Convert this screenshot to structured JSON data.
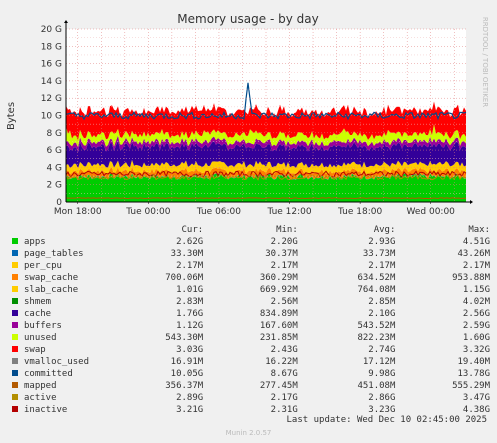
{
  "chart_data": {
    "type": "area",
    "title": "Memory usage - by day",
    "ylabel": "Bytes",
    "side_label": "RRDTOOL / TOBI OETIKER",
    "ylim": [
      0,
      20
    ],
    "y_unit": "G",
    "y_ticks": [
      "0",
      "2 G",
      "4 G",
      "6 G",
      "8 G",
      "10 G",
      "12 G",
      "14 G",
      "16 G",
      "18 G",
      "20 G"
    ],
    "x_range": [
      "Mon 17:00",
      "Wed 03:00"
    ],
    "x_ticks": [
      "Mon 18:00",
      "Tue 00:00",
      "Tue 06:00",
      "Tue 12:00",
      "Tue 18:00",
      "Wed 00:00"
    ],
    "stack_order": [
      "apps",
      "page_tables",
      "per_cpu",
      "swap_cache",
      "slab_cache",
      "cache",
      "buffers",
      "unused",
      "swap"
    ],
    "line_series": [
      "committed",
      "inactive"
    ],
    "legend_headers": [
      "Cur:",
      "Min:",
      "Avg:",
      "Max:"
    ],
    "series": [
      {
        "name": "apps",
        "color": "#00cc00",
        "cur": "2.62G",
        "min": "2.20G",
        "avg": "2.93G",
        "max": "4.51G",
        "level_g": 2.93
      },
      {
        "name": "page_tables",
        "color": "#0066b3",
        "cur": "33.30M",
        "min": "30.37M",
        "avg": "33.73M",
        "max": "43.26M",
        "level_g": 0.033
      },
      {
        "name": "per_cpu",
        "color": "#ffcc00",
        "cur": "2.17M",
        "min": "2.17M",
        "avg": "2.17M",
        "max": "2.17M",
        "level_g": 0.002
      },
      {
        "name": "swap_cache",
        "color": "#ff8000",
        "cur": "700.06M",
        "min": "360.29M",
        "avg": "634.52M",
        "max": "953.88M",
        "level_g": 0.63
      },
      {
        "name": "slab_cache",
        "color": "#ffcc00",
        "cur": "1.01G",
        "min": "669.92M",
        "avg": "764.08M",
        "max": "1.15G",
        "level_g": 0.76
      },
      {
        "name": "shmem",
        "color": "#008f00",
        "cur": "2.83M",
        "min": "2.56M",
        "avg": "2.85M",
        "max": "4.02M",
        "level_g": 0.003
      },
      {
        "name": "cache",
        "color": "#330099",
        "cur": "1.76G",
        "min": "834.89M",
        "avg": "2.10G",
        "max": "2.56G",
        "level_g": 2.1
      },
      {
        "name": "buffers",
        "color": "#990099",
        "cur": "1.12G",
        "min": "167.60M",
        "avg": "543.52M",
        "max": "2.59G",
        "level_g": 0.54
      },
      {
        "name": "unused",
        "color": "#ccff00",
        "cur": "543.30M",
        "min": "231.85M",
        "avg": "822.23M",
        "max": "1.60G",
        "level_g": 0.82
      },
      {
        "name": "swap",
        "color": "#ff0000",
        "cur": "3.03G",
        "min": "2.43G",
        "avg": "2.74G",
        "max": "3.32G",
        "level_g": 2.74
      },
      {
        "name": "vmalloc_used",
        "color": "#808080",
        "cur": "16.91M",
        "min": "16.22M",
        "avg": "17.12M",
        "max": "19.40M",
        "level_g": 0.017
      },
      {
        "name": "committed",
        "color": "#004b8c",
        "cur": "10.05G",
        "min": "8.67G",
        "avg": "9.98G",
        "max": "13.78G",
        "level_g": 9.98
      },
      {
        "name": "mapped",
        "color": "#b35a00",
        "cur": "356.37M",
        "min": "277.45M",
        "avg": "451.08M",
        "max": "555.29M",
        "level_g": 0.45
      },
      {
        "name": "active",
        "color": "#b38f00",
        "cur": "2.89G",
        "min": "2.17G",
        "avg": "2.86G",
        "max": "3.47G",
        "level_g": 2.86
      },
      {
        "name": "inactive",
        "color": "#b30000",
        "cur": "3.21G",
        "min": "2.31G",
        "avg": "3.23G",
        "max": "4.38G",
        "level_g": 3.23
      }
    ],
    "committed_spike": {
      "time": "Tue 08:30",
      "value_g": 13.78
    },
    "grid": true
  },
  "footer": {
    "last_update": "Last update: Wed Dec 10 02:45:00 2025",
    "version": "Munin 2.0.57"
  }
}
